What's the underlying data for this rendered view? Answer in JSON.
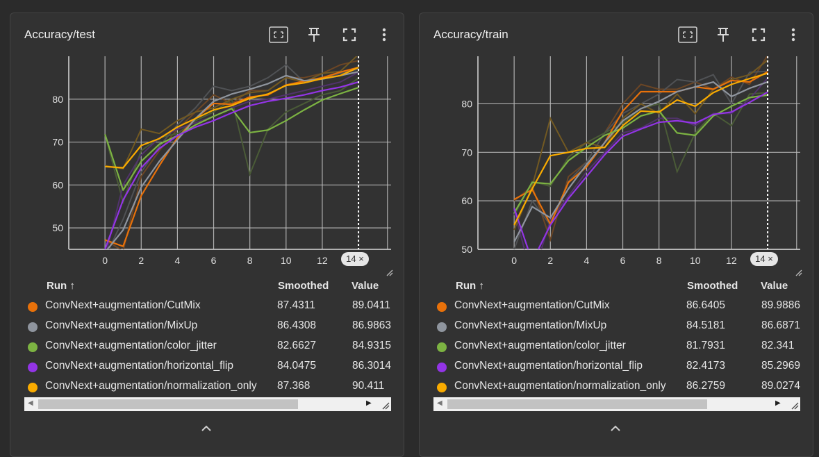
{
  "colors": {
    "CutMix": "#e8710a",
    "MixUp": "#8f959e",
    "color_jitter": "#7cb342",
    "horizontal_flip": "#9334e6",
    "normalization_only": "#f9ab00"
  },
  "table": {
    "col_run": "Run ↑",
    "col_smoothed": "Smoothed",
    "col_value": "Value"
  },
  "chart_data": [
    {
      "type": "line",
      "title": "Accuracy/test",
      "xlabel": "",
      "ylabel": "",
      "x_ticks": [
        0,
        2,
        4,
        6,
        8,
        10,
        12
      ],
      "y_ticks": [
        50,
        60,
        70,
        80
      ],
      "xlim": [
        -2,
        15.8
      ],
      "ylim": [
        45,
        90
      ],
      "grid": true,
      "step_marker": "14 ×",
      "step_marker_x": 14,
      "x": [
        0,
        1,
        2,
        3,
        4,
        5,
        6,
        7,
        8,
        9,
        10,
        11,
        12,
        13,
        14
      ],
      "series": [
        {
          "key": "CutMix",
          "name": "ConvNext+augmentation/CutMix",
          "smoothed_label": "87.4311",
          "value_label": "89.0411",
          "smoothed": [
            47.2,
            45.7,
            57.5,
            64.5,
            71.0,
            75.5,
            79.0,
            78.8,
            80.5,
            81.0,
            83.3,
            84.2,
            85.0,
            86.3,
            87.4
          ],
          "raw": [
            47.2,
            44.6,
            62,
            68,
            73,
            77,
            81,
            79,
            82,
            82,
            85,
            85,
            86,
            88,
            89
          ]
        },
        {
          "key": "MixUp",
          "name": "ConvNext+augmentation/MixUp",
          "smoothed_label": "86.4308",
          "value_label": "86.9863",
          "smoothed": [
            44.3,
            49.5,
            59.5,
            65.5,
            70.5,
            75.5,
            79.5,
            81.2,
            82.3,
            83.6,
            85.5,
            84.3,
            84.7,
            85.5,
            86.4
          ],
          "raw": [
            43,
            52,
            63,
            69,
            74,
            78,
            83,
            82,
            83,
            85,
            88,
            84,
            85,
            86,
            87
          ]
        },
        {
          "key": "color_jitter",
          "name": "ConvNext+augmentation/color_jitter",
          "smoothed_label": "82.6627",
          "value_label": "84.9315",
          "smoothed": [
            71.8,
            58.8,
            65.5,
            69.5,
            71.5,
            74.0,
            76.0,
            77.8,
            72.2,
            72.8,
            75.0,
            77.5,
            79.8,
            81.3,
            82.7
          ],
          "raw": [
            71.8,
            56,
            68,
            71,
            72,
            75,
            77,
            80,
            62.5,
            73,
            77,
            79,
            81,
            82,
            84.9
          ]
        },
        {
          "key": "horizontal_flip",
          "name": "ConvNext+augmentation/horizontal_flip",
          "smoothed_label": "84.0475",
          "value_label": "86.3014",
          "smoothed": [
            45.0,
            56.5,
            64.0,
            68.5,
            71.5,
            73.5,
            75.0,
            76.8,
            78.5,
            79.5,
            80.2,
            81.0,
            82.0,
            82.8,
            84.0
          ],
          "raw": [
            43,
            60,
            67,
            71,
            73,
            74.5,
            76,
            78,
            79.5,
            80,
            81,
            82,
            83,
            84,
            86.3
          ]
        },
        {
          "key": "normalization_only",
          "name": "ConvNext+augmentation/normalization_only",
          "smoothed_label": "87.368",
          "value_label": "90.411",
          "smoothed": [
            64.3,
            64.0,
            69.2,
            70.8,
            73.5,
            75.5,
            77.5,
            78.5,
            80.2,
            81.2,
            83.2,
            83.8,
            84.8,
            85.5,
            87.4
          ],
          "raw": [
            64.5,
            63.8,
            73,
            72,
            75,
            77,
            78,
            80,
            81.5,
            82,
            85,
            84,
            86,
            86.5,
            90.4
          ]
        }
      ]
    },
    {
      "type": "line",
      "title": "Accuracy/train",
      "xlabel": "",
      "ylabel": "",
      "x_ticks": [
        0,
        2,
        4,
        6,
        8,
        10,
        12
      ],
      "y_ticks": [
        50,
        60,
        70,
        80
      ],
      "xlim": [
        -2,
        15.8
      ],
      "ylim": [
        50,
        89.8
      ],
      "grid": true,
      "step_marker": "14 ×",
      "step_marker_x": 14,
      "x": [
        0,
        1,
        2,
        3,
        4,
        5,
        6,
        7,
        8,
        9,
        10,
        11,
        12,
        13,
        14
      ],
      "series": [
        {
          "key": "CutMix",
          "name": "ConvNext+augmentation/CutMix",
          "smoothed_label": "86.6405",
          "value_label": "89.9886",
          "smoothed": [
            60.3,
            62.3,
            55.2,
            63.8,
            67.0,
            72.0,
            78.5,
            82.5,
            82.5,
            82.5,
            83.5,
            83.0,
            84.8,
            84.5,
            86.6
          ],
          "raw": [
            60,
            63,
            52,
            65,
            68,
            74,
            80,
            84,
            83,
            83,
            84.5,
            83,
            85.5,
            84,
            90
          ]
        },
        {
          "key": "MixUp",
          "name": "ConvNext+augmentation/MixUp",
          "smoothed_label": "84.5181",
          "value_label": "86.6871",
          "smoothed": [
            51.5,
            58.8,
            56.5,
            62.5,
            67.5,
            72.0,
            76.5,
            79.0,
            80.5,
            82.5,
            83.5,
            84.5,
            81.5,
            83.2,
            84.5
          ],
          "raw": [
            50,
            60,
            55,
            64,
            68,
            74,
            78,
            80,
            82,
            85,
            84.5,
            86,
            80,
            86.5,
            86.7
          ]
        },
        {
          "key": "color_jitter",
          "name": "ConvNext+augmentation/color_jitter",
          "smoothed_label": "81.7931",
          "value_label": "82.341",
          "smoothed": [
            57.5,
            63.8,
            63.5,
            68.3,
            71.0,
            73.5,
            75.0,
            77.5,
            78.5,
            74.0,
            73.5,
            77.5,
            79.5,
            81.3,
            81.8
          ],
          "raw": [
            57,
            64,
            63,
            69,
            72,
            74,
            76,
            79,
            80,
            66,
            74,
            78,
            75.5,
            82,
            82.3
          ]
        },
        {
          "key": "horizontal_flip",
          "name": "ConvNext+augmentation/horizontal_flip",
          "smoothed_label": "82.4173",
          "value_label": "85.2969",
          "smoothed": [
            58.5,
            47.5,
            55.0,
            60.5,
            65.0,
            69.5,
            73.3,
            74.8,
            76.2,
            76.5,
            76.0,
            77.8,
            78.3,
            80.3,
            82.4
          ],
          "raw": [
            58,
            44,
            56,
            61,
            66,
            70,
            74,
            75,
            77,
            77,
            75.5,
            78,
            78,
            81,
            85.3
          ]
        },
        {
          "key": "normalization_only",
          "name": "ConvNext+augmentation/normalization_only",
          "smoothed_label": "86.2759",
          "value_label": "89.0274",
          "smoothed": [
            55.0,
            62.5,
            69.3,
            70.0,
            70.8,
            71.0,
            75.5,
            78.5,
            78.3,
            80.8,
            79.5,
            82.3,
            84.0,
            85.2,
            86.3
          ],
          "raw": [
            54,
            63,
            77,
            70,
            72,
            71,
            77,
            80,
            78,
            82,
            78,
            83,
            85,
            86,
            89
          ]
        }
      ]
    }
  ]
}
